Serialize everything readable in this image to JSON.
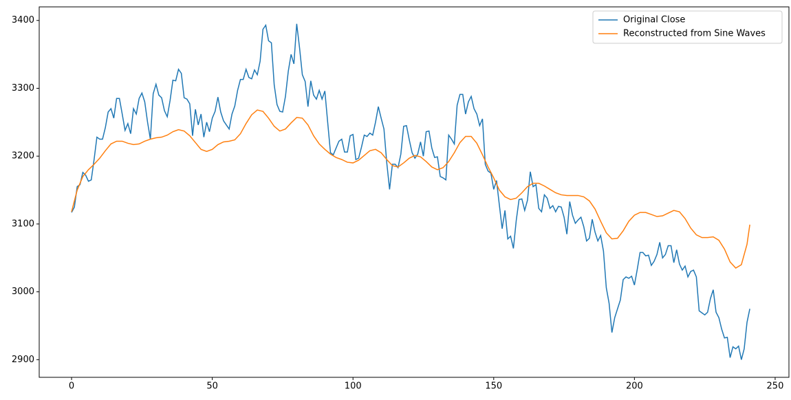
{
  "chart_data": {
    "type": "line",
    "xlim": [
      -11.5,
      254.9
    ],
    "ylim": [
      2874,
      3420
    ],
    "xticks": [
      0,
      50,
      100,
      150,
      200,
      250
    ],
    "yticks": [
      2900,
      3000,
      3100,
      3200,
      3300,
      3400
    ],
    "legend": "upper right",
    "series": [
      {
        "name": "Original Close",
        "color": "#1f77b4",
        "x": [
          0,
          1,
          2,
          3,
          4,
          5,
          6,
          7,
          8,
          9,
          10,
          11,
          12,
          13,
          14,
          15,
          16,
          17,
          18,
          19,
          20,
          21,
          22,
          23,
          24,
          25,
          26,
          27,
          28,
          29,
          30,
          31,
          32,
          33,
          34,
          35,
          36,
          37,
          38,
          39,
          40,
          41,
          42,
          43,
          44,
          45,
          46,
          47,
          48,
          49,
          50,
          51,
          52,
          53,
          54,
          55,
          56,
          57,
          58,
          59,
          60,
          61,
          62,
          63,
          64,
          65,
          66,
          67,
          68,
          69,
          70,
          71,
          72,
          73,
          74,
          75,
          76,
          77,
          78,
          79,
          80,
          81,
          82,
          83,
          84,
          85,
          86,
          87,
          88,
          89,
          90,
          91,
          92,
          93,
          94,
          95,
          96,
          97,
          98,
          99,
          100,
          101,
          102,
          103,
          104,
          105,
          106,
          107,
          108,
          109,
          110,
          111,
          112,
          113,
          114,
          115,
          116,
          117,
          118,
          119,
          120,
          121,
          122,
          123,
          124,
          125,
          126,
          127,
          128,
          129,
          130,
          131,
          132,
          133,
          134,
          135,
          136,
          137,
          138,
          139,
          140,
          141,
          142,
          143,
          144,
          145,
          146,
          147,
          148,
          149,
          150,
          151,
          152,
          153,
          154,
          155,
          156,
          157,
          158,
          159,
          160,
          161,
          162,
          163,
          164,
          165,
          166,
          167,
          168,
          169,
          170,
          171,
          172,
          173,
          174,
          175,
          176,
          177,
          178,
          179,
          180,
          181,
          182,
          183,
          184,
          185,
          186,
          187,
          188,
          189,
          190,
          191,
          192,
          193,
          194,
          195,
          196,
          197,
          198,
          199,
          200,
          201,
          202,
          203,
          204,
          205,
          206,
          207,
          208,
          209,
          210,
          211,
          212,
          213,
          214,
          215,
          216,
          217,
          218,
          219,
          220,
          221,
          222,
          223,
          224,
          225,
          226,
          227,
          228,
          229,
          230,
          231,
          232,
          233,
          234,
          235,
          236,
          237,
          238,
          239,
          240,
          241
        ],
        "values": [
          3117,
          3125,
          3155,
          3158,
          3176,
          3172,
          3163,
          3165,
          3195,
          3228,
          3225,
          3225,
          3242,
          3265,
          3270,
          3256,
          3285,
          3285,
          3262,
          3238,
          3248,
          3233,
          3270,
          3262,
          3285,
          3293,
          3280,
          3250,
          3225,
          3292,
          3306,
          3290,
          3286,
          3267,
          3258,
          3282,
          3312,
          3311,
          3328,
          3322,
          3286,
          3284,
          3277,
          3230,
          3269,
          3246,
          3262,
          3228,
          3250,
          3236,
          3256,
          3266,
          3287,
          3265,
          3252,
          3246,
          3240,
          3262,
          3274,
          3297,
          3313,
          3313,
          3328,
          3316,
          3314,
          3327,
          3320,
          3340,
          3387,
          3393,
          3370,
          3367,
          3305,
          3276,
          3266,
          3265,
          3288,
          3325,
          3350,
          3336,
          3395,
          3360,
          3320,
          3310,
          3273,
          3311,
          3290,
          3284,
          3297,
          3284,
          3296,
          3250,
          3205,
          3202,
          3212,
          3222,
          3225,
          3206,
          3206,
          3230,
          3232,
          3195,
          3197,
          3213,
          3231,
          3229,
          3234,
          3231,
          3250,
          3273,
          3256,
          3240,
          3190,
          3151,
          3188,
          3188,
          3183,
          3203,
          3244,
          3245,
          3224,
          3205,
          3197,
          3203,
          3221,
          3200,
          3236,
          3237,
          3212,
          3198,
          3199,
          3170,
          3168,
          3165,
          3231,
          3225,
          3218,
          3275,
          3291,
          3291,
          3262,
          3280,
          3288,
          3270,
          3262,
          3245,
          3255,
          3188,
          3178,
          3175,
          3151,
          3164,
          3128,
          3093,
          3120,
          3078,
          3082,
          3064,
          3105,
          3136,
          3137,
          3120,
          3135,
          3177,
          3155,
          3158,
          3123,
          3118,
          3143,
          3138,
          3123,
          3127,
          3118,
          3126,
          3125,
          3110,
          3085,
          3133,
          3113,
          3101,
          3106,
          3110,
          3096,
          3075,
          3079,
          3107,
          3088,
          3075,
          3083,
          3060,
          3006,
          2983,
          2940,
          2962,
          2975,
          2988,
          3018,
          3022,
          3020,
          3023,
          3010,
          3033,
          3058,
          3058,
          3053,
          3054,
          3039,
          3045,
          3055,
          3073,
          3050,
          3055,
          3068,
          3068,
          3043,
          3062,
          3041,
          3032,
          3038,
          3022,
          3030,
          3032,
          3022,
          2972,
          2969,
          2966,
          2970,
          2990,
          3003,
          2970,
          2962,
          2945,
          2932,
          2933,
          2903,
          2919,
          2916,
          2920,
          2900,
          2916,
          2955,
          2975
        ]
      },
      {
        "name": "Reconstructed from Sine Waves",
        "color": "#ff7f0e",
        "x": [
          0,
          2,
          4,
          6,
          8,
          10,
          12,
          14,
          16,
          18,
          20,
          22,
          24,
          26,
          28,
          30,
          32,
          34,
          36,
          38,
          40,
          42,
          44,
          46,
          48,
          50,
          52,
          54,
          56,
          58,
          60,
          62,
          64,
          66,
          68,
          70,
          72,
          74,
          76,
          78,
          80,
          82,
          84,
          86,
          88,
          90,
          92,
          94,
          96,
          98,
          100,
          102,
          104,
          106,
          108,
          110,
          112,
          114,
          116,
          118,
          120,
          122,
          124,
          126,
          128,
          130,
          132,
          134,
          136,
          138,
          140,
          142,
          144,
          146,
          148,
          150,
          152,
          154,
          156,
          158,
          160,
          162,
          164,
          166,
          168,
          170,
          172,
          174,
          176,
          178,
          180,
          182,
          184,
          186,
          188,
          190,
          192,
          194,
          196,
          198,
          200,
          202,
          204,
          206,
          208,
          210,
          212,
          214,
          216,
          218,
          220,
          222,
          224,
          226,
          228,
          230,
          232,
          234,
          236,
          238,
          240,
          241
        ],
        "values": [
          3118,
          3150,
          3170,
          3180,
          3188,
          3197,
          3208,
          3218,
          3222,
          3222,
          3219,
          3217,
          3218,
          3222,
          3225,
          3227,
          3228,
          3231,
          3236,
          3239,
          3237,
          3230,
          3220,
          3210,
          3207,
          3210,
          3217,
          3221,
          3222,
          3224,
          3233,
          3248,
          3261,
          3268,
          3266,
          3256,
          3244,
          3237,
          3240,
          3249,
          3257,
          3256,
          3246,
          3230,
          3218,
          3210,
          3203,
          3198,
          3195,
          3191,
          3190,
          3194,
          3201,
          3208,
          3210,
          3205,
          3195,
          3186,
          3184,
          3190,
          3197,
          3201,
          3199,
          3192,
          3184,
          3180,
          3183,
          3192,
          3205,
          3220,
          3229,
          3229,
          3219,
          3202,
          3184,
          3168,
          3150,
          3140,
          3136,
          3138,
          3146,
          3155,
          3160,
          3160,
          3156,
          3151,
          3146,
          3143,
          3142,
          3142,
          3142,
          3140,
          3134,
          3122,
          3104,
          3087,
          3078,
          3079,
          3090,
          3104,
          3113,
          3117,
          3117,
          3114,
          3111,
          3112,
          3116,
          3120,
          3118,
          3108,
          3094,
          3084,
          3080,
          3080,
          3081,
          3076,
          3063,
          3044,
          3035,
          3040,
          3070,
          3099
        ]
      }
    ]
  }
}
